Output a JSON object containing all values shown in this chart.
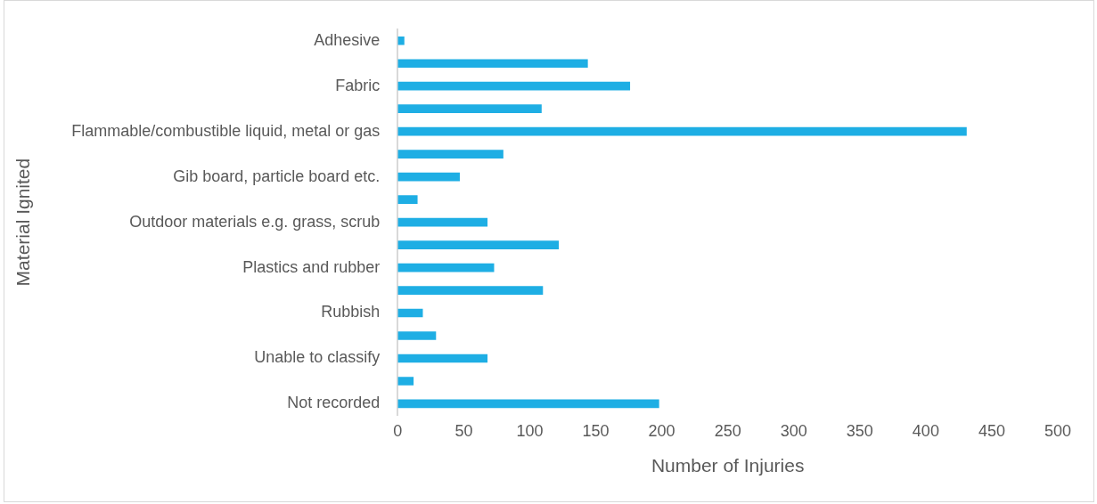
{
  "chart_data": {
    "type": "bar",
    "orientation": "horizontal",
    "xlabel": "Number of Injuries",
    "ylabel": "Material Ignited",
    "categories": [
      "Adhesive",
      null,
      "Fabric",
      null,
      "Flammable/combustible liquid, metal or gas",
      null,
      "Gib board, particle board etc.",
      null,
      "Outdoor materials e.g. grass, scrub",
      null,
      "Plastics and rubber",
      null,
      "Rubbish",
      null,
      "Unable to classify",
      null,
      "Not recorded"
    ],
    "values": [
      5,
      144,
      176,
      109,
      431,
      80,
      47,
      15,
      68,
      122,
      73,
      110,
      19,
      29,
      68,
      12,
      198
    ],
    "color": "#1eaee4",
    "xlim": [
      0,
      500
    ],
    "xticks": [
      0,
      50,
      100,
      150,
      200,
      250,
      300,
      350,
      400,
      450,
      500
    ],
    "grid": false,
    "legend": false
  }
}
